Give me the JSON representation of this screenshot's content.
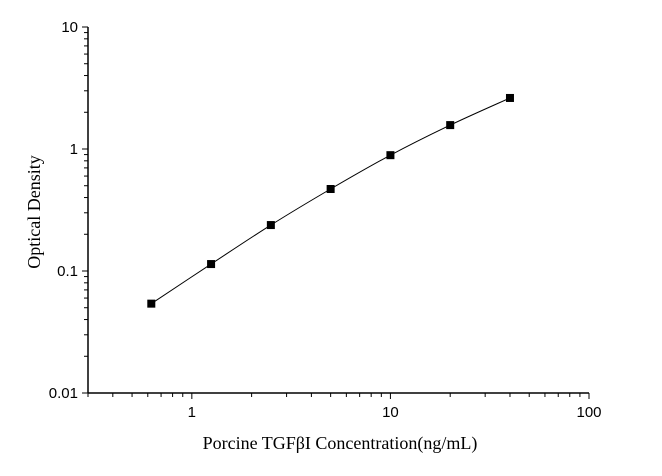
{
  "chart_data": {
    "type": "line",
    "title": "",
    "xlabel": "Porcine TGFβI Concentration(ng/mL)",
    "ylabel": "Optical Density",
    "x_scale": "log",
    "y_scale": "log",
    "xlim": [
      0.3,
      100
    ],
    "ylim": [
      0.01,
      10
    ],
    "x_ticks": [
      "1",
      "10",
      "100"
    ],
    "y_ticks": [
      "0.01",
      "0.1",
      "1",
      "10"
    ],
    "grid": false,
    "marker": "square",
    "color": "#000000",
    "series": [
      {
        "x": [
          0.625,
          1.25,
          2.5,
          5,
          10,
          20,
          40
        ],
        "y": [
          0.054,
          0.114,
          0.238,
          0.47,
          0.89,
          1.57,
          2.62
        ]
      }
    ]
  }
}
